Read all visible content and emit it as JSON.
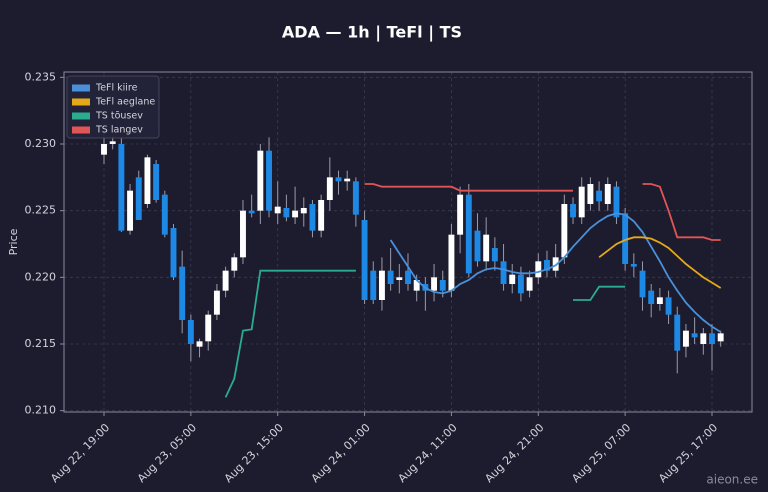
{
  "chart_data": {
    "type": "candlestick",
    "title": "ADA — 1h  |  TeFl  |  TS",
    "y_label": "Price",
    "watermark": "aieon.ee",
    "categories": [
      "Aug 22, 19:00",
      null,
      null,
      null,
      null,
      null,
      null,
      null,
      null,
      null,
      "Aug 23, 05:00",
      null,
      null,
      null,
      null,
      null,
      null,
      null,
      null,
      null,
      "Aug 23, 15:00",
      null,
      null,
      null,
      null,
      null,
      null,
      null,
      null,
      null,
      "Aug 24, 01:00",
      null,
      null,
      null,
      null,
      null,
      null,
      null,
      null,
      null,
      "Aug 24, 11:00",
      null,
      null,
      null,
      null,
      null,
      null,
      null,
      null,
      null,
      "Aug 24, 21:00",
      null,
      null,
      null,
      null,
      null,
      null,
      null,
      null,
      null,
      "Aug 25, 07:00",
      null,
      null,
      null,
      null,
      null,
      null,
      null,
      null,
      null,
      "Aug 25, 17:00",
      null
    ],
    "candles": {
      "up_color": "#ffffff",
      "down_color": "#1e88e5",
      "open": [
        0.2292,
        0.23,
        0.23,
        0.2235,
        0.2275,
        0.2255,
        0.2285,
        0.2262,
        0.2237,
        0.2208,
        0.2168,
        0.2148,
        0.2152,
        0.2172,
        0.219,
        0.2205,
        0.2215,
        0.225,
        0.225,
        0.2295,
        0.2248,
        0.2252,
        0.2245,
        0.2248,
        0.2255,
        0.2235,
        0.2258,
        0.2275,
        0.2272,
        0.2272,
        0.2243,
        0.2205,
        0.2183,
        0.2205,
        0.2198,
        0.2205,
        0.219,
        0.2195,
        0.219,
        0.2198,
        0.219,
        0.2232,
        0.2262,
        0.2235,
        0.2212,
        0.2222,
        0.2212,
        0.2195,
        0.2202,
        0.219,
        0.22,
        0.2213,
        0.2205,
        0.2215,
        0.2255,
        0.2245,
        0.2255,
        0.2265,
        0.2255,
        0.2268,
        0.2248,
        0.221,
        0.2205,
        0.219,
        0.218,
        0.2185,
        0.2172,
        0.2148,
        0.2158,
        0.215,
        0.2158,
        0.2152
      ],
      "high": [
        0.231,
        0.2306,
        0.2305,
        0.227,
        0.228,
        0.2292,
        0.2288,
        0.2265,
        0.224,
        0.222,
        0.2172,
        0.2154,
        0.2175,
        0.2195,
        0.2208,
        0.2218,
        0.2258,
        0.2262,
        0.23,
        0.2305,
        0.2272,
        0.2262,
        0.2268,
        0.226,
        0.2258,
        0.2262,
        0.229,
        0.228,
        0.228,
        0.2275,
        0.225,
        0.2212,
        0.2215,
        0.2222,
        0.221,
        0.2218,
        0.2202,
        0.22,
        0.221,
        0.2205,
        0.224,
        0.2268,
        0.227,
        0.2248,
        0.2245,
        0.223,
        0.2225,
        0.221,
        0.2208,
        0.2205,
        0.2218,
        0.222,
        0.2225,
        0.2262,
        0.226,
        0.2275,
        0.2275,
        0.2272,
        0.2275,
        0.2272,
        0.2252,
        0.2218,
        0.2212,
        0.2195,
        0.2192,
        0.219,
        0.2178,
        0.2165,
        0.217,
        0.2162,
        0.2165,
        0.216
      ],
      "low": [
        0.2285,
        0.2296,
        0.2234,
        0.2232,
        0.2243,
        0.2252,
        0.2256,
        0.223,
        0.2198,
        0.2158,
        0.2137,
        0.214,
        0.2145,
        0.2168,
        0.2185,
        0.22,
        0.221,
        0.2245,
        0.224,
        0.2245,
        0.224,
        0.2242,
        0.224,
        0.2238,
        0.223,
        0.223,
        0.225,
        0.2262,
        0.2265,
        0.2238,
        0.218,
        0.218,
        0.2175,
        0.219,
        0.2188,
        0.219,
        0.2182,
        0.2175,
        0.2182,
        0.2185,
        0.2185,
        0.2218,
        0.22,
        0.2208,
        0.2205,
        0.2205,
        0.219,
        0.2188,
        0.2182,
        0.2185,
        0.2195,
        0.22,
        0.22,
        0.221,
        0.224,
        0.224,
        0.225,
        0.225,
        0.225,
        0.224,
        0.2205,
        0.22,
        0.2175,
        0.217,
        0.2175,
        0.2165,
        0.2128,
        0.214,
        0.215,
        0.2142,
        0.213,
        0.2148
      ],
      "close": [
        0.23,
        0.2302,
        0.2235,
        0.2265,
        0.2243,
        0.229,
        0.2258,
        0.2232,
        0.22,
        0.2168,
        0.215,
        0.2152,
        0.2172,
        0.219,
        0.2205,
        0.2215,
        0.225,
        0.2248,
        0.2295,
        0.225,
        0.2253,
        0.2245,
        0.225,
        0.2252,
        0.2235,
        0.2258,
        0.2275,
        0.2272,
        0.2274,
        0.2247,
        0.2183,
        0.2183,
        0.2205,
        0.2195,
        0.22,
        0.2195,
        0.2198,
        0.219,
        0.22,
        0.219,
        0.2232,
        0.2262,
        0.2203,
        0.2212,
        0.2232,
        0.2212,
        0.2195,
        0.2202,
        0.2188,
        0.22,
        0.2212,
        0.2205,
        0.2215,
        0.2255,
        0.2245,
        0.2268,
        0.227,
        0.2257,
        0.227,
        0.2245,
        0.221,
        0.2208,
        0.2185,
        0.218,
        0.2185,
        0.2172,
        0.2145,
        0.216,
        0.2155,
        0.2158,
        0.215,
        0.2158
      ]
    },
    "series": [
      {
        "name": "TeFl kiire",
        "color": "#4a90d9",
        "values": [
          null,
          null,
          null,
          null,
          null,
          null,
          null,
          null,
          null,
          null,
          null,
          null,
          null,
          null,
          null,
          null,
          null,
          null,
          null,
          null,
          null,
          null,
          null,
          null,
          null,
          null,
          null,
          null,
          null,
          null,
          null,
          null,
          null,
          0.2228,
          0.2218,
          0.2208,
          0.2198,
          0.2192,
          0.2189,
          0.2188,
          0.219,
          0.2195,
          0.2198,
          0.2203,
          0.2206,
          0.2207,
          0.2206,
          0.2204,
          0.2203,
          0.2203,
          0.2204,
          0.2206,
          0.2209,
          0.2215,
          0.2223,
          0.223,
          0.2237,
          0.2242,
          0.2246,
          0.2248,
          0.2247,
          0.2242,
          0.2234,
          0.2223,
          0.2212,
          0.22,
          0.219,
          0.2181,
          0.2174,
          0.2168,
          0.2163,
          0.2159
        ]
      },
      {
        "name": "TeFl aeglane",
        "color": "#e6a817",
        "values": [
          null,
          null,
          null,
          null,
          null,
          null,
          null,
          null,
          null,
          null,
          null,
          null,
          null,
          null,
          null,
          null,
          null,
          null,
          null,
          null,
          null,
          null,
          null,
          null,
          null,
          null,
          null,
          null,
          null,
          null,
          null,
          null,
          null,
          null,
          null,
          null,
          null,
          null,
          null,
          null,
          null,
          null,
          null,
          null,
          null,
          null,
          null,
          null,
          null,
          null,
          null,
          null,
          null,
          null,
          null,
          null,
          null,
          0.2215,
          0.222,
          0.2225,
          0.2228,
          0.223,
          0.223,
          0.2229,
          0.2226,
          0.2222,
          0.2216,
          0.221,
          0.2205,
          0.22,
          0.2196,
          0.2192
        ]
      },
      {
        "name": "TS tõusev",
        "color": "#2bab8f",
        "values": [
          null,
          null,
          null,
          null,
          null,
          null,
          null,
          null,
          null,
          null,
          null,
          null,
          null,
          null,
          0.211,
          0.2124,
          0.216,
          0.2161,
          0.2205,
          0.2205,
          0.2205,
          0.2205,
          0.2205,
          0.2205,
          0.2205,
          0.2205,
          0.2205,
          0.2205,
          0.2205,
          0.2205,
          null,
          null,
          null,
          null,
          null,
          null,
          null,
          null,
          null,
          null,
          null,
          null,
          null,
          null,
          null,
          null,
          null,
          null,
          null,
          null,
          null,
          null,
          null,
          null,
          0.2183,
          0.2183,
          0.2183,
          0.2193,
          0.2193,
          0.2193,
          0.2193,
          null,
          null,
          null,
          null,
          null,
          null,
          null,
          null,
          null,
          null,
          null
        ]
      },
      {
        "name": "TS langev",
        "color": "#e05555",
        "values": [
          null,
          null,
          null,
          null,
          null,
          null,
          null,
          null,
          null,
          null,
          null,
          null,
          null,
          null,
          null,
          null,
          null,
          null,
          null,
          null,
          null,
          null,
          null,
          null,
          null,
          null,
          null,
          null,
          null,
          null,
          0.227,
          0.227,
          0.2268,
          0.2268,
          0.2268,
          0.2268,
          0.2268,
          0.2268,
          0.2268,
          0.2268,
          0.2268,
          0.2265,
          0.2265,
          0.2265,
          0.2265,
          0.2265,
          0.2265,
          0.2265,
          0.2265,
          0.2265,
          0.2265,
          0.2265,
          0.2265,
          0.2265,
          0.2265,
          null,
          null,
          null,
          null,
          null,
          null,
          null,
          0.227,
          0.227,
          0.2268,
          0.225,
          0.223,
          0.223,
          0.223,
          0.223,
          0.2228,
          0.2228
        ]
      }
    ],
    "ylim": [
      0.2099,
      0.2354
    ],
    "yticks": [
      {
        "value": 0.21,
        "label": "0.210"
      },
      {
        "value": 0.215,
        "label": "0.215"
      },
      {
        "value": 0.22,
        "label": "0.220"
      },
      {
        "value": 0.225,
        "label": "0.225"
      },
      {
        "value": 0.23,
        "label": "0.230"
      },
      {
        "value": 0.235,
        "label": "0.235"
      }
    ],
    "grid": true,
    "legend": "upper left"
  }
}
